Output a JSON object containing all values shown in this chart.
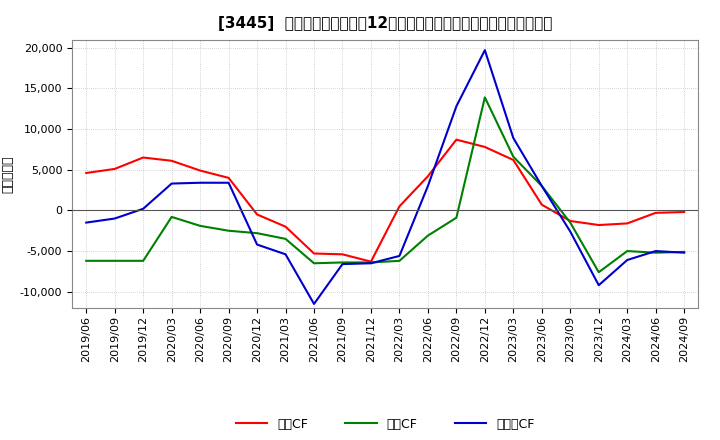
{
  "title": "[3445]  キャッシュフローの12か月移動合計の対前年同期増減額の推移",
  "ylabel": "（百万円）",
  "background_color": "#ffffff",
  "plot_bg_color": "#ffffff",
  "grid_color": "#aaaaaa",
  "ylim": [
    -12000,
    21000
  ],
  "yticks": [
    -10000,
    -5000,
    0,
    5000,
    10000,
    15000,
    20000
  ],
  "dates": [
    "2019/06",
    "2019/09",
    "2019/12",
    "2020/03",
    "2020/06",
    "2020/09",
    "2020/12",
    "2021/03",
    "2021/06",
    "2021/09",
    "2021/12",
    "2022/03",
    "2022/06",
    "2022/09",
    "2022/12",
    "2023/03",
    "2023/06",
    "2023/09",
    "2023/12",
    "2024/03",
    "2024/06",
    "2024/09"
  ],
  "operating_cf": [
    4600,
    5100,
    6500,
    6100,
    4900,
    4000,
    -500,
    -2000,
    -5300,
    -5400,
    -6300,
    500,
    4200,
    8700,
    7800,
    6200,
    700,
    -1300,
    -1800,
    -1600,
    -300,
    -200
  ],
  "investing_cf": [
    -6200,
    -6200,
    -6200,
    -800,
    -1900,
    -2500,
    -2800,
    -3500,
    -6500,
    -6400,
    -6400,
    -6200,
    -3100,
    -900,
    13900,
    6600,
    3000,
    -1500,
    -7600,
    -5000,
    -5200,
    -5100
  ],
  "free_cf": [
    -1500,
    -1000,
    200,
    3300,
    3400,
    3400,
    -4200,
    -5400,
    -11500,
    -6600,
    -6500,
    -5600,
    3000,
    12800,
    19700,
    8900,
    3000,
    -2600,
    -9200,
    -6100,
    -5000,
    -5200
  ],
  "line_colors": {
    "operating": "#ff0000",
    "investing": "#008000",
    "free": "#0000cc"
  },
  "legend_labels": [
    "営業CF",
    "投資CF",
    "フリーCF"
  ],
  "title_fontsize": 11,
  "label_fontsize": 9,
  "tick_fontsize": 8
}
